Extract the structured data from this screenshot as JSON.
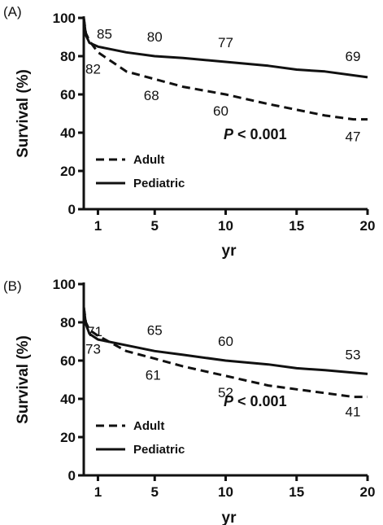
{
  "chart_data": [
    {
      "panel": "(A)",
      "type": "line",
      "xlabel": "yr",
      "ylabel": "Survival (%)",
      "xlim": [
        0,
        20
      ],
      "ylim": [
        0,
        100
      ],
      "xticks": [
        1,
        5,
        10,
        15,
        20
      ],
      "xtick_labels": [
        "1",
        "5",
        "10",
        "15",
        "20"
      ],
      "yticks": [
        0,
        20,
        40,
        60,
        80,
        100
      ],
      "ytick_labels": [
        "0",
        "20",
        "40",
        "60",
        "80",
        "100"
      ],
      "legend": {
        "position": "bottom-left",
        "entries": [
          "Adult",
          "Pediatric"
        ]
      },
      "p_value": {
        "prefix": "P",
        "text": " < 0.001"
      },
      "series": [
        {
          "name": "Adult",
          "style": "dashed",
          "x": [
            0,
            0.15,
            0.4,
            1,
            2,
            3,
            5,
            7,
            10,
            13,
            15,
            17,
            19,
            20
          ],
          "y": [
            100,
            92,
            88,
            82,
            77,
            72,
            68,
            64,
            60,
            55,
            52,
            49,
            47,
            47
          ]
        },
        {
          "name": "Pediatric",
          "style": "solid",
          "x": [
            0,
            0.15,
            0.4,
            1,
            3,
            5,
            7,
            10,
            13,
            15,
            17,
            20
          ],
          "y": [
            100,
            91,
            87,
            85,
            82,
            80,
            79,
            77,
            75,
            73,
            72,
            69
          ]
        }
      ],
      "data_labels": [
        {
          "series": "Pediatric",
          "x": 1,
          "y": 85,
          "text": "85"
        },
        {
          "series": "Adult",
          "x": 1,
          "y": 82,
          "text": "82"
        },
        {
          "series": "Pediatric",
          "x": 5,
          "y": 80,
          "text": "80"
        },
        {
          "series": "Adult",
          "x": 5,
          "y": 68,
          "text": "68"
        },
        {
          "series": "Pediatric",
          "x": 10,
          "y": 77,
          "text": "77"
        },
        {
          "series": "Adult",
          "x": 10,
          "y": 60,
          "text": "60"
        },
        {
          "series": "Pediatric",
          "x": 20,
          "y": 69,
          "text": "69"
        },
        {
          "series": "Adult",
          "x": 20,
          "y": 47,
          "text": "47"
        }
      ]
    },
    {
      "panel": "(B)",
      "type": "line",
      "xlabel": "yr",
      "ylabel": "Survival (%)",
      "xlim": [
        0,
        20
      ],
      "ylim": [
        0,
        100
      ],
      "xticks": [
        1,
        5,
        10,
        15,
        20
      ],
      "xtick_labels": [
        "1",
        "5",
        "10",
        "15",
        "20"
      ],
      "yticks": [
        0,
        20,
        40,
        60,
        80,
        100
      ],
      "ytick_labels": [
        "0",
        "20",
        "40",
        "60",
        "80",
        "100"
      ],
      "legend": {
        "position": "bottom-left",
        "entries": [
          "Adult",
          "Pediatric"
        ]
      },
      "p_value": {
        "prefix": "P",
        "text": " < 0.001"
      },
      "series": [
        {
          "name": "Adult",
          "style": "dashed",
          "x": [
            0,
            0.15,
            0.4,
            1,
            2,
            3,
            5,
            7,
            10,
            13,
            15,
            17,
            19,
            20
          ],
          "y": [
            88,
            80,
            76,
            73,
            69,
            65,
            61,
            57,
            52,
            47,
            45,
            43,
            41,
            41
          ]
        },
        {
          "name": "Pediatric",
          "style": "solid",
          "x": [
            0,
            0.15,
            0.4,
            1,
            3,
            5,
            7,
            10,
            13,
            15,
            17,
            20
          ],
          "y": [
            88,
            79,
            74,
            71,
            68,
            65,
            63,
            60,
            58,
            56,
            55,
            53
          ]
        }
      ],
      "data_labels": [
        {
          "series": "Pediatric",
          "x": 1,
          "y": 71,
          "text": "71"
        },
        {
          "series": "Adult",
          "x": 1,
          "y": 73,
          "text": "73"
        },
        {
          "series": "Pediatric",
          "x": 5,
          "y": 65,
          "text": "65"
        },
        {
          "series": "Adult",
          "x": 5,
          "y": 61,
          "text": "61"
        },
        {
          "series": "Pediatric",
          "x": 10,
          "y": 60,
          "text": "60"
        },
        {
          "series": "Adult",
          "x": 10,
          "y": 52,
          "text": "52"
        },
        {
          "series": "Pediatric",
          "x": 20,
          "y": 53,
          "text": "53"
        },
        {
          "series": "Adult",
          "x": 20,
          "y": 41,
          "text": "41"
        }
      ]
    }
  ]
}
